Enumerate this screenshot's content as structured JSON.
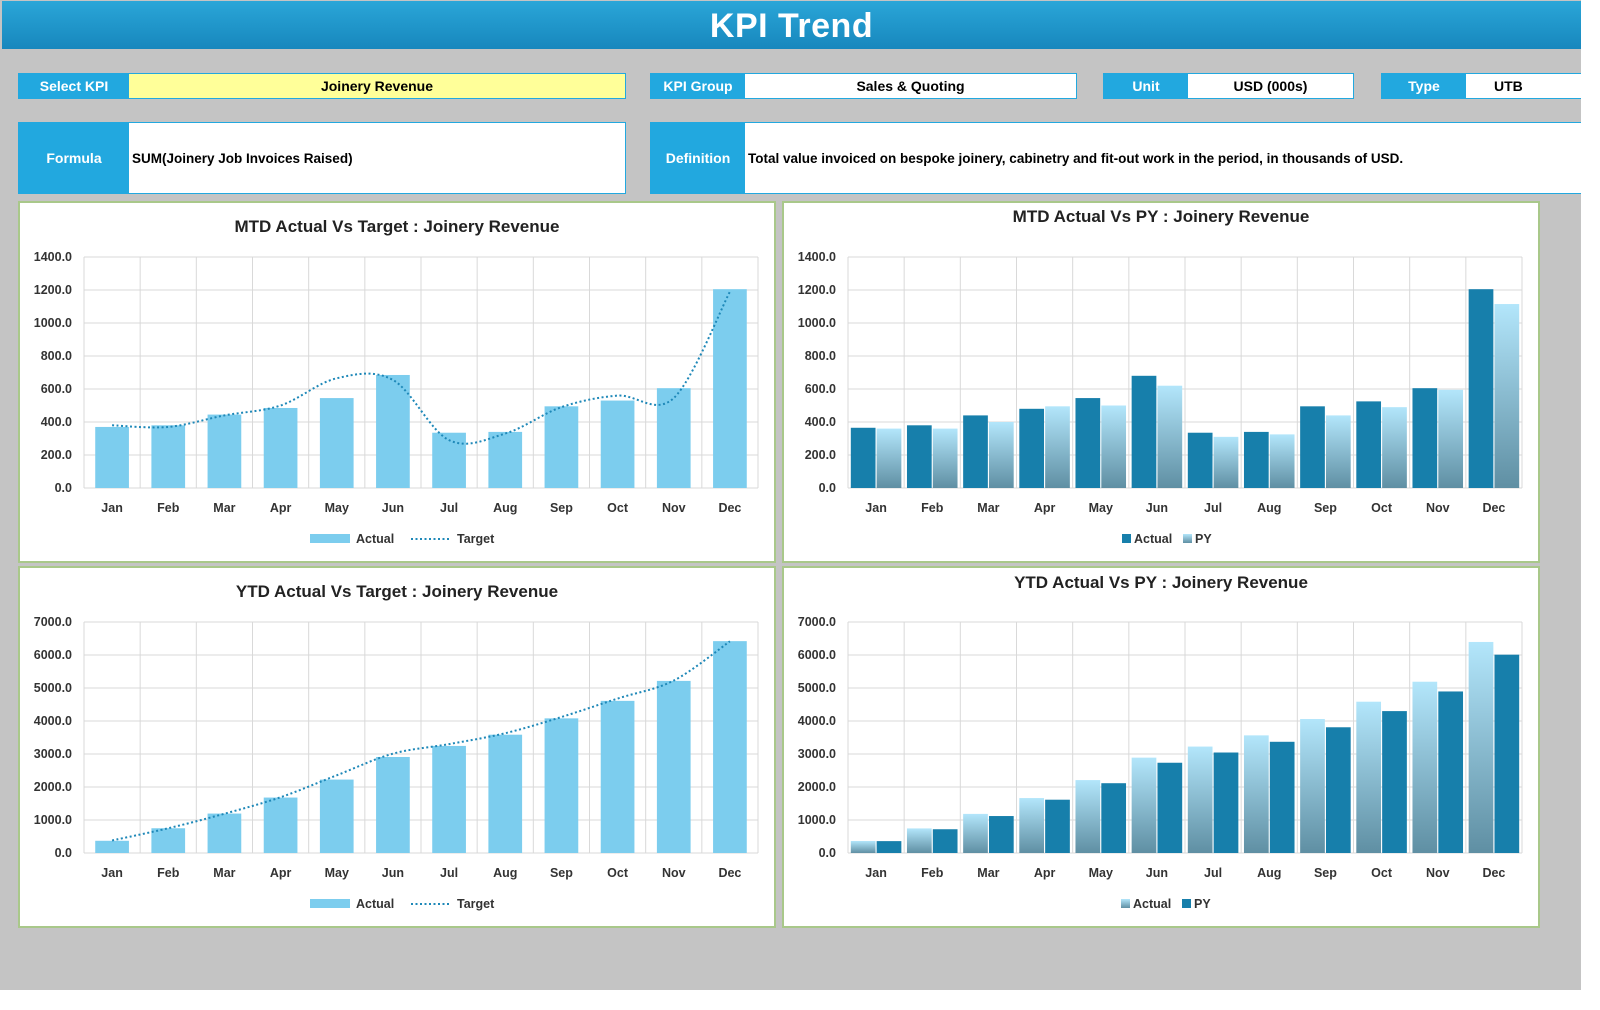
{
  "title": "KPI Trend",
  "fields": {
    "select_kpi": {
      "label": "Select KPI",
      "value": "Joinery Revenue"
    },
    "kpi_group": {
      "label": "KPI Group",
      "value": "Sales & Quoting"
    },
    "unit": {
      "label": "Unit",
      "value": "USD (000s)"
    },
    "type": {
      "label": "Type",
      "value": "UTB"
    },
    "formula": {
      "label": "Formula",
      "value": "SUM(Joinery Job Invoices Raised)"
    },
    "definition": {
      "label": "Definition",
      "value": "Total value invoiced on bespoke joinery, cabinetry and fit-out work in the period, in thousands of USD."
    }
  },
  "colors": {
    "accent": "#22a8df",
    "select_kpi_bg": "#ffff99",
    "actual_light": "#7ccdee",
    "actual_dark": "#177fab",
    "target_line": "#1e88b8",
    "panel_border": "#a9c88a"
  },
  "chart_data": [
    {
      "id": "mtd_target",
      "type": "bar",
      "title": "MTD Actual Vs Target : Joinery Revenue",
      "categories": [
        "Jan",
        "Feb",
        "Mar",
        "Apr",
        "May",
        "Jun",
        "Jul",
        "Aug",
        "Sep",
        "Oct",
        "Nov",
        "Dec"
      ],
      "ylim": [
        0,
        1400
      ],
      "yticks": [
        "0.0",
        "200.0",
        "400.0",
        "600.0",
        "800.0",
        "1000.0",
        "1200.0",
        "1400.0"
      ],
      "grid": true,
      "legend": "bottom",
      "series": [
        {
          "name": "Actual",
          "kind": "bar",
          "style": "light",
          "values": [
            370,
            380,
            445,
            485,
            545,
            685,
            335,
            340,
            495,
            530,
            605,
            1205
          ]
        },
        {
          "name": "Target",
          "kind": "dotted-line",
          "values": [
            380,
            370,
            440,
            500,
            665,
            655,
            290,
            330,
            490,
            560,
            545,
            1190
          ]
        }
      ]
    },
    {
      "id": "mtd_py",
      "type": "bar",
      "title": "MTD Actual Vs PY : Joinery Revenue",
      "categories": [
        "Jan",
        "Feb",
        "Mar",
        "Apr",
        "May",
        "Jun",
        "Jul",
        "Aug",
        "Sep",
        "Oct",
        "Nov",
        "Dec"
      ],
      "ylim": [
        0,
        1400
      ],
      "yticks": [
        "0.0",
        "200.0",
        "400.0",
        "600.0",
        "800.0",
        "1000.0",
        "1200.0",
        "1400.0"
      ],
      "grid": true,
      "legend": "bottom",
      "series": [
        {
          "name": "Actual",
          "kind": "bar",
          "style": "dark",
          "values": [
            365,
            380,
            440,
            480,
            545,
            680,
            335,
            340,
            495,
            525,
            605,
            1205
          ]
        },
        {
          "name": "PY",
          "kind": "bar",
          "style": "gradient",
          "values": [
            360,
            360,
            400,
            495,
            500,
            620,
            310,
            325,
            440,
            490,
            595,
            1115
          ]
        }
      ]
    },
    {
      "id": "ytd_target",
      "type": "bar",
      "title": "YTD Actual Vs Target : Joinery Revenue",
      "categories": [
        "Jan",
        "Feb",
        "Mar",
        "Apr",
        "May",
        "Jun",
        "Jul",
        "Aug",
        "Sep",
        "Oct",
        "Nov",
        "Dec"
      ],
      "ylim": [
        0,
        7000
      ],
      "yticks": [
        "0.0",
        "1000.0",
        "2000.0",
        "3000.0",
        "4000.0",
        "5000.0",
        "6000.0",
        "7000.0"
      ],
      "grid": true,
      "legend": "bottom",
      "series": [
        {
          "name": "Actual",
          "kind": "bar",
          "style": "light",
          "values": [
            370,
            750,
            1195,
            1680,
            2225,
            2910,
            3245,
            3585,
            4080,
            4610,
            5215,
            6420
          ]
        },
        {
          "name": "Target",
          "kind": "dotted-line",
          "values": [
            380,
            750,
            1190,
            1690,
            2355,
            3010,
            3300,
            3630,
            4120,
            4680,
            5225,
            6415
          ]
        }
      ]
    },
    {
      "id": "ytd_py",
      "type": "bar",
      "title": "YTD Actual Vs PY : Joinery Revenue",
      "categories": [
        "Jan",
        "Feb",
        "Mar",
        "Apr",
        "May",
        "Jun",
        "Jul",
        "Aug",
        "Sep",
        "Oct",
        "Nov",
        "Dec"
      ],
      "ylim": [
        0,
        7000
      ],
      "yticks": [
        "0.0",
        "1000.0",
        "2000.0",
        "3000.0",
        "4000.0",
        "5000.0",
        "6000.0",
        "7000.0"
      ],
      "grid": true,
      "legend": "bottom",
      "series": [
        {
          "name": "Actual",
          "kind": "bar",
          "style": "gradient",
          "values": [
            365,
            745,
            1185,
            1665,
            2210,
            2890,
            3225,
            3565,
            4060,
            4585,
            5190,
            6395
          ]
        },
        {
          "name": "PY",
          "kind": "bar",
          "style": "dark",
          "values": [
            360,
            720,
            1120,
            1615,
            2115,
            2735,
            3045,
            3370,
            3810,
            4300,
            4895,
            6010
          ]
        }
      ]
    }
  ]
}
